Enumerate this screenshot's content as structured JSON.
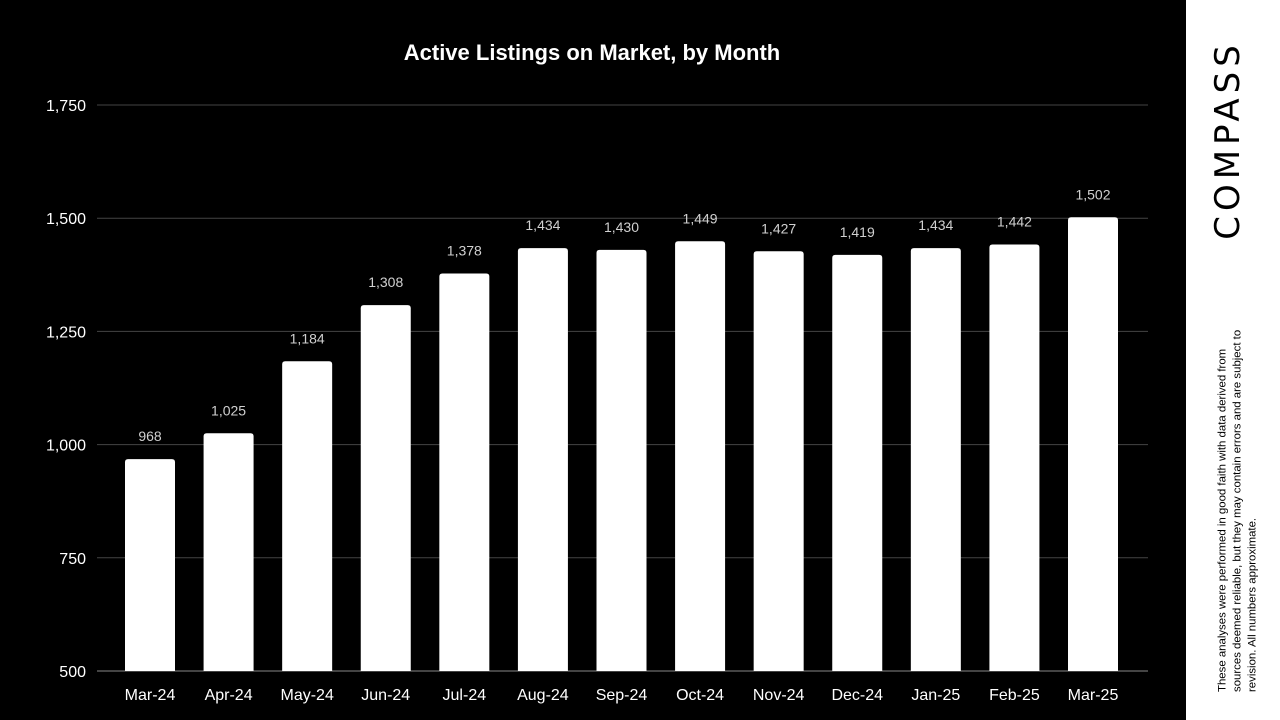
{
  "chart_data": {
    "type": "bar",
    "title": "Active Listings on Market, by Month",
    "xlabel": "",
    "ylabel": "",
    "categories": [
      "Mar-24",
      "Apr-24",
      "May-24",
      "Jun-24",
      "Jul-24",
      "Aug-24",
      "Sep-24",
      "Oct-24",
      "Nov-24",
      "Dec-24",
      "Jan-25",
      "Feb-25",
      "Mar-25"
    ],
    "values": [
      968,
      1025,
      1184,
      1308,
      1378,
      1434,
      1430,
      1449,
      1427,
      1419,
      1434,
      1442,
      1502
    ],
    "value_labels": [
      "968",
      "1,025",
      "1,184",
      "1,308",
      "1,378",
      "1,434",
      "1,430",
      "1,449",
      "1,427",
      "1,419",
      "1,434",
      "1,442",
      "1,502"
    ],
    "ylim": [
      500,
      1750
    ],
    "yticks": [
      500,
      750,
      1000,
      1250,
      1500,
      1750
    ],
    "ytick_labels": [
      "500",
      "750",
      "1,000",
      "1,250",
      "1,500",
      "1,750"
    ],
    "grid": true,
    "legend": "none",
    "background_color": "#000000",
    "bar_color": "#ffffff"
  },
  "brand": {
    "logo": "COMPASS"
  },
  "disclaimer": "These analyses were performed in good faith with data derived from sources deemed reliable, but they may contain errors and are subject to revision. All numbers approximate."
}
